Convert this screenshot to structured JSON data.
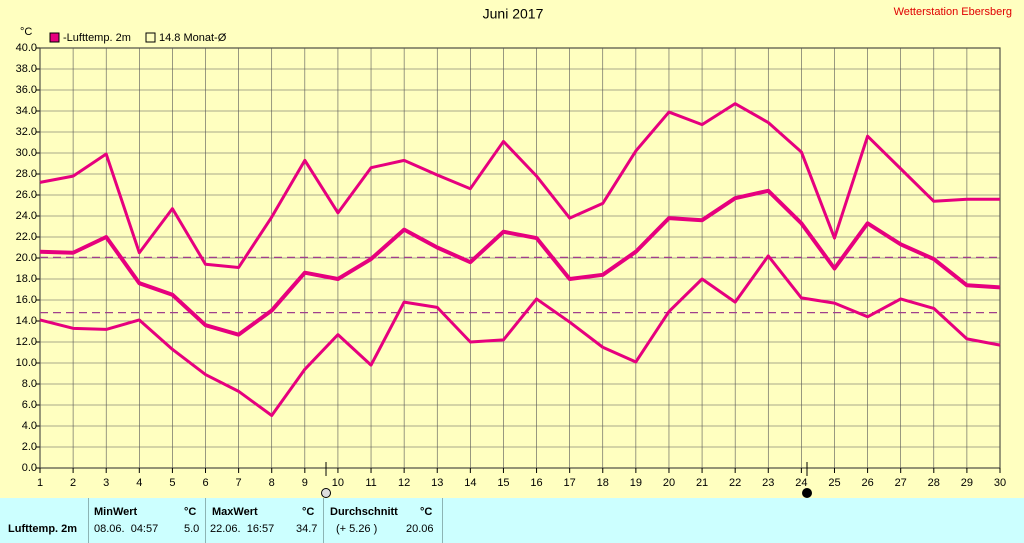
{
  "chart_data": {
    "type": "line",
    "title": "Juni 2017",
    "station": "Wetterstation Ebersberg",
    "unit_label": "°C",
    "legend": [
      "-Lufttemp. 2m",
      "14.8 Monat-Ø"
    ],
    "x": [
      1,
      2,
      3,
      4,
      5,
      6,
      7,
      8,
      9,
      10,
      11,
      12,
      13,
      14,
      15,
      16,
      17,
      18,
      19,
      20,
      21,
      22,
      23,
      24,
      25,
      26,
      27,
      28,
      29,
      30
    ],
    "series": [
      {
        "color": "#e6007e",
        "values": [
          27.2,
          27.8,
          29.9,
          20.5,
          24.7,
          19.4,
          19.1,
          23.9,
          29.3,
          24.3,
          28.6,
          29.3,
          27.9,
          26.6,
          31.1,
          27.8,
          23.8,
          25.2,
          30.2,
          33.9,
          32.7,
          34.7,
          32.9,
          30.1,
          21.9,
          31.6,
          28.5,
          25.4,
          25.6,
          25.6
        ]
      },
      {
        "color": "#e6007e",
        "values": [
          20.6,
          20.5,
          22.0,
          17.6,
          16.5,
          13.6,
          12.7,
          15.0,
          18.6,
          18.0,
          19.9,
          22.7,
          21.0,
          19.6,
          22.5,
          21.9,
          18.0,
          18.4,
          20.6,
          23.8,
          23.6,
          25.7,
          26.4,
          23.3,
          19.0,
          23.3,
          21.3,
          19.9,
          17.4,
          17.2
        ]
      },
      {
        "color": "#e6007e",
        "values": [
          14.1,
          13.3,
          13.2,
          14.1,
          11.3,
          8.9,
          7.3,
          5.0,
          9.4,
          12.7,
          9.8,
          15.8,
          15.3,
          12.0,
          12.2,
          16.1,
          13.9,
          11.5,
          10.1,
          14.9,
          18.0,
          15.8,
          20.2,
          16.2,
          15.7,
          14.4,
          16.1,
          15.2,
          12.3,
          11.7
        ]
      }
    ],
    "reference_lines": [
      {
        "value": 20.06,
        "color": "#a0408c"
      },
      {
        "value": 14.8,
        "color": "#a0408c"
      }
    ],
    "moon_phases": [
      {
        "x": 9.64,
        "phase": "full"
      },
      {
        "x": 24.17,
        "phase": "new"
      }
    ],
    "xlim": [
      1,
      30
    ],
    "xticks": [
      1,
      2,
      3,
      4,
      5,
      6,
      7,
      8,
      9,
      10,
      11,
      12,
      13,
      14,
      15,
      16,
      17,
      18,
      19,
      20,
      21,
      22,
      23,
      24,
      25,
      26,
      27,
      28,
      29,
      30
    ],
    "ylim": [
      0,
      40
    ],
    "yticks": [
      {
        "value": 0,
        "label": "0.0"
      },
      {
        "value": 2,
        "label": "2.0"
      },
      {
        "value": 4,
        "label": "4.0"
      },
      {
        "value": 6,
        "label": "6.0"
      },
      {
        "value": 8,
        "label": "8.0"
      },
      {
        "value": 10,
        "label": "10.0"
      },
      {
        "value": 12,
        "label": "12.0"
      },
      {
        "value": 14,
        "label": "14.0"
      },
      {
        "value": 16,
        "label": "16.0"
      },
      {
        "value": 18,
        "label": "18.0"
      },
      {
        "value": 20,
        "label": "20.0"
      },
      {
        "value": 22,
        "label": "22.0"
      },
      {
        "value": 24,
        "label": "24.0"
      },
      {
        "value": 26,
        "label": "26.0"
      },
      {
        "value": 28,
        "label": "28.0"
      },
      {
        "value": 30,
        "label": "30.0"
      },
      {
        "value": 32,
        "label": "32.0"
      },
      {
        "value": 34,
        "label": "34.0"
      },
      {
        "value": 36,
        "label": "36.0"
      },
      {
        "value": 38,
        "label": "38.0"
      },
      {
        "value": 40,
        "label": "40.0"
      }
    ],
    "grid": true
  },
  "table": {
    "header": [
      "MinWert",
      "°C",
      "MaxWert",
      "°C",
      "Durchschnitt",
      "°C"
    ],
    "rows": [
      [
        "Lufttemp. 2m",
        "08.06.  04:57",
        "5.0",
        "22.06.  16:57",
        "34.7",
        "(+ 5.26 )",
        "20.06"
      ]
    ]
  }
}
